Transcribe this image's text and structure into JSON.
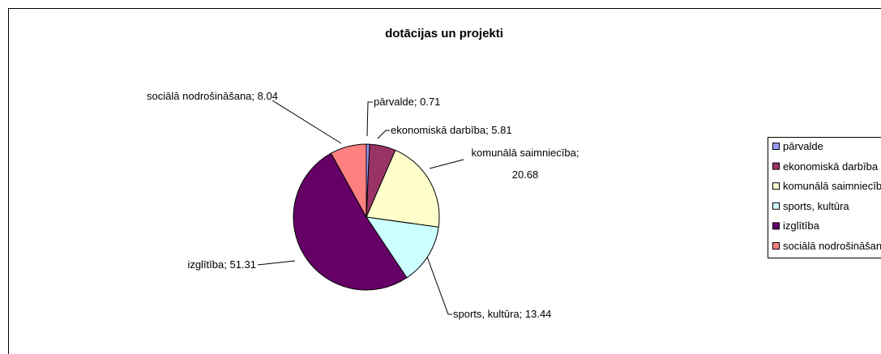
{
  "chart_data": {
    "type": "pie",
    "title": "dotācijas un projekti",
    "categories": [
      "pārvalde",
      "ekonomiskā darbība",
      "komunālā saimniecība",
      "sports, kultūra",
      "izglītība",
      "sociālā nodrošināšana"
    ],
    "values": [
      0.71,
      5.81,
      20.68,
      13.44,
      51.31,
      8.04
    ],
    "value_labels": [
      "pārvalde; 0.71",
      "ekonomiskā darbība; 5.81",
      "komunālā saimniecība; 20.68",
      "sports, kultūra; 13.44",
      "izglītība; 51.31",
      "sociālā nodrošināšana; 8.04"
    ],
    "colors": [
      "#9999FF",
      "#993366",
      "#FFFFCC",
      "#CCFFFF",
      "#660066",
      "#FF8080"
    ],
    "legend": "right"
  }
}
